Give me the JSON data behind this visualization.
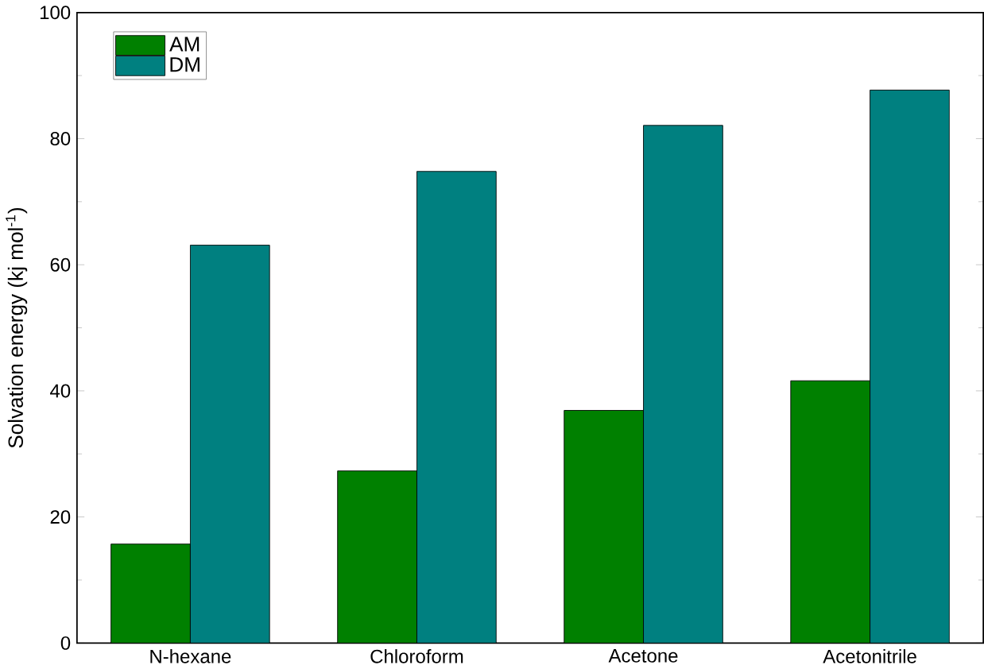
{
  "chart_data": {
    "type": "bar",
    "ylabel": "Solvation energy (kj mol$^{-1}$)",
    "categories": [
      "N-hexane",
      "Chloroform",
      "Acetone",
      "Acetonitrile"
    ],
    "series": [
      {
        "name": "AM",
        "color": "#008000",
        "values": [
          15.7,
          27.3,
          36.9,
          41.6
        ]
      },
      {
        "name": "DM",
        "color": "#008080",
        "values": [
          63.1,
          74.8,
          82.1,
          87.7
        ]
      }
    ],
    "ylim": [
      0,
      100
    ],
    "yticks": [
      0,
      20,
      40,
      60,
      80,
      100
    ],
    "grid": false,
    "legend": "top left"
  }
}
